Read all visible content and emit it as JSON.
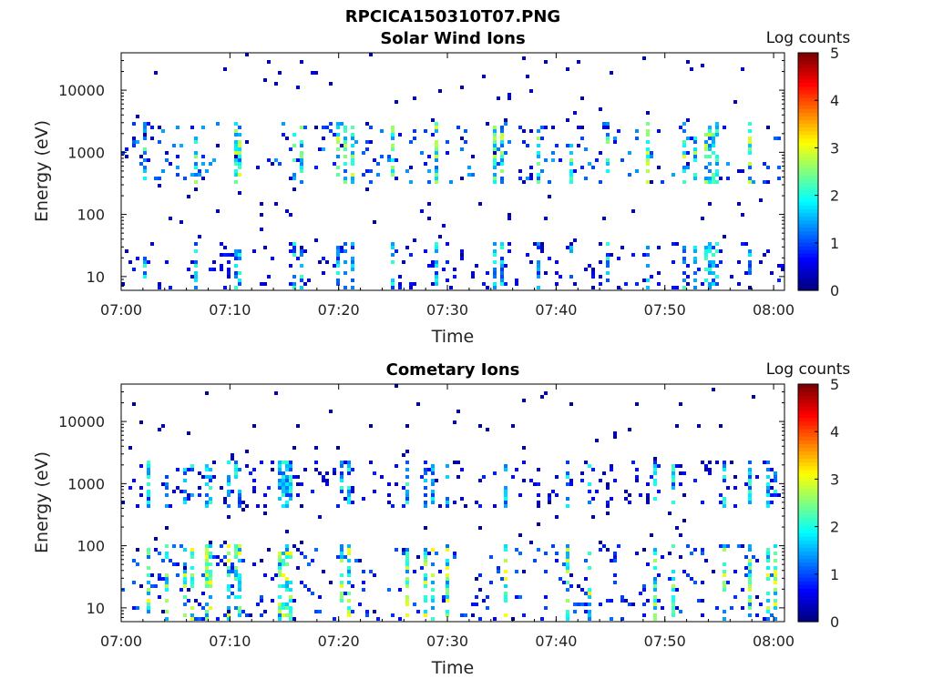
{
  "figure": {
    "title": "RPCICA150310T07.PNG"
  },
  "colorbar": {
    "label": "Log counts",
    "ticks": [
      "0",
      "1",
      "2",
      "3",
      "4",
      "5"
    ],
    "range": [
      0,
      5
    ],
    "colormap": "jet"
  },
  "chart_data": [
    {
      "type": "heatmap",
      "title": "Solar Wind Ions",
      "xlabel": "Time",
      "ylabel": "Energy (eV)",
      "x_ticks": [
        "07:00",
        "07:10",
        "07:20",
        "07:30",
        "07:40",
        "07:50",
        "08:00"
      ],
      "y_ticks": [
        "10",
        "100",
        "1000",
        "10000"
      ],
      "y_scale": "log",
      "ylim": [
        6,
        40000
      ],
      "xlim": [
        "07:00",
        "08:01"
      ],
      "clim": [
        0,
        5
      ],
      "colorbar_label": "Log counts",
      "description_of_features": "Sparse counts; banded activity near 1000 eV and below 40 eV with vertical bursts",
      "bands": [
        {
          "energy_range": [
            300,
            3000
          ],
          "typical_log_counts": 1.5,
          "peak_log_counts": 3.0
        },
        {
          "energy_range": [
            6,
            35
          ],
          "typical_log_counts": 0.8,
          "peak_log_counts": 2.2
        }
      ],
      "background_sparse_log_counts": 0.3
    },
    {
      "type": "heatmap",
      "title": "Cometary Ions",
      "xlabel": "Time",
      "ylabel": "Energy (eV)",
      "x_ticks": [
        "07:00",
        "07:10",
        "07:20",
        "07:30",
        "07:40",
        "07:50",
        "08:00"
      ],
      "y_ticks": [
        "10",
        "100",
        "1000",
        "10000"
      ],
      "y_scale": "log",
      "ylim": [
        6,
        40000
      ],
      "xlim": [
        "07:00",
        "08:01"
      ],
      "clim": [
        0,
        5
      ],
      "colorbar_label": "Log counts",
      "description_of_features": "Strong low-energy columns below 100 eV reaching about 3 log counts; sparse points near 1000 eV",
      "bands": [
        {
          "energy_range": [
            6,
            100
          ],
          "typical_log_counts": 1.2,
          "peak_log_counts": 3.2
        },
        {
          "energy_range": [
            400,
            2500
          ],
          "typical_log_counts": 0.8,
          "peak_log_counts": 2.2
        }
      ],
      "background_sparse_log_counts": 0.2
    }
  ]
}
